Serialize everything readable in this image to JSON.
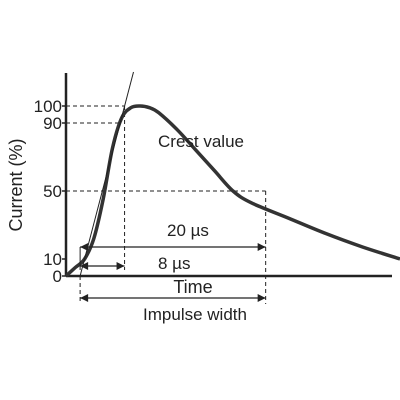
{
  "chart_data": {
    "type": "line",
    "title": "",
    "xlabel": "Time",
    "ylabel": "Current (%)",
    "yticks": [
      0,
      10,
      50,
      90,
      100
    ],
    "ylim": [
      0,
      120
    ],
    "xlim": [
      0,
      36
    ],
    "grid": false,
    "legend": "none",
    "series": [
      {
        "x": [
          0,
          1,
          2,
          3,
          4,
          5,
          6,
          7,
          8,
          9,
          10,
          12,
          14,
          16,
          18,
          20,
          24,
          28,
          32,
          36
        ],
        "values": [
          0,
          5,
          10,
          22,
          45,
          75,
          93,
          99,
          100,
          99,
          96,
          86,
          74,
          62,
          50,
          43,
          34,
          25,
          17,
          10
        ]
      }
    ],
    "annotations": {
      "crest": "Crest value",
      "front_time": "8 µs",
      "half_value_time": "20 µs",
      "impulse_width": "Impulse width"
    },
    "front_time_us": 8,
    "half_value_time_us": 20,
    "curve_color": "#333333",
    "line_color": "#222222"
  }
}
